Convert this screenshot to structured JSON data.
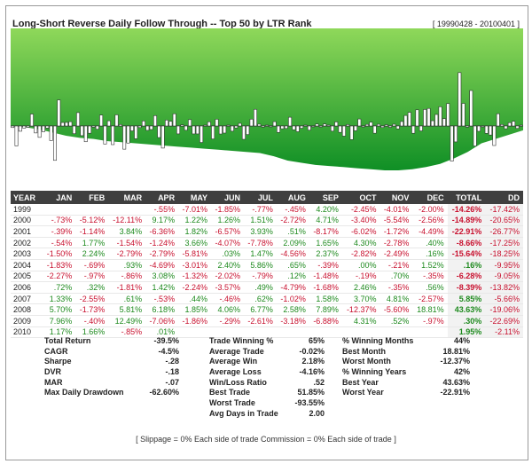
{
  "header": {
    "title": "Long-Short Reverse Daily Follow Through -- Top 50 by LTR Rank",
    "date_range": "[ 19990428 - 20100401 ]"
  },
  "chart_data": {
    "type": "area",
    "title": "Long-Short Reverse Daily Follow Through -- Top 50 by LTR Rank",
    "x_range": [
      "1999-04",
      "2010-04"
    ],
    "colors": {
      "equity_top": "#8fd85a",
      "equity_bottom": "#0f8f25",
      "drawdown": "#ffffff",
      "bar_fill": "#ffffff",
      "bar_stroke": "#333333",
      "baseline": "#333333"
    },
    "equity_series": [
      0,
      10,
      20,
      30,
      50,
      70,
      85,
      90,
      95,
      110,
      120,
      130,
      135,
      150,
      165,
      180,
      200,
      215,
      215,
      210,
      200,
      185,
      170,
      160,
      150,
      140,
      130,
      115,
      105,
      95,
      85,
      65,
      40,
      10,
      40,
      60,
      80,
      100
    ],
    "drawdown_series": [
      0,
      -5,
      -15,
      -30,
      -45,
      -55,
      -60,
      -70,
      -75,
      -80,
      -85,
      -90,
      -95,
      -100,
      -105,
      -110,
      -115,
      -120,
      -125,
      -140,
      -160,
      -170,
      -180,
      -185,
      -190,
      -195,
      -200,
      -205,
      -205,
      -200,
      -190,
      -175,
      -150,
      -120,
      -80,
      -60,
      -40,
      -20
    ],
    "monthly_returns_pct": [
      [
        -0.55,
        -7.01,
        -1.85,
        -0.77,
        -0.45,
        4.2,
        -2.45,
        -4.01,
        -2.0
      ],
      [
        -0.73,
        -5.12,
        -12.11,
        9.17,
        1.22,
        1.26,
        1.51,
        -2.72,
        4.71,
        -3.4,
        -5.54,
        -2.56
      ],
      [
        -0.39,
        -1.14,
        3.84,
        -6.36,
        1.82,
        -6.57,
        3.93,
        0.51,
        -8.17,
        -6.02,
        -1.72,
        -4.49
      ],
      [
        -0.54,
        1.77,
        -1.54,
        -1.24,
        3.66,
        -4.07,
        -7.78,
        2.09,
        1.65,
        4.3,
        -2.78,
        0.4
      ],
      [
        -1.5,
        2.24,
        -2.79,
        -2.79,
        -5.81,
        0.03,
        1.47,
        -4.56,
        2.37,
        -2.82,
        -2.49,
        0.16
      ],
      [
        -1.83,
        -0.69,
        0.93,
        -4.69,
        -3.01,
        2.4,
        5.86,
        0.65,
        -0.39,
        0.0,
        -0.21,
        1.52
      ],
      [
        -2.27,
        -0.97,
        -0.86,
        3.08,
        -1.32,
        -2.02,
        -0.79,
        0.12,
        -1.48,
        -0.19,
        0.7,
        -0.35
      ],
      [
        0.72,
        0.32,
        -1.81,
        1.42,
        -2.24,
        -3.57,
        0.49,
        -4.79,
        -1.68,
        2.46,
        -0.35,
        0.56
      ],
      [
        1.33,
        -2.55,
        0.61,
        -0.53,
        0.44,
        -0.46,
        0.62,
        -1.02,
        1.58,
        3.7,
        4.81,
        -2.57
      ],
      [
        5.7,
        -1.73,
        5.81,
        6.18,
        1.85,
        4.06,
        6.77,
        2.58,
        7.89,
        -12.37,
        -5.6,
        18.81
      ],
      [
        7.96,
        -0.4,
        12.49,
        -7.06,
        -1.86,
        -0.29,
        -2.61,
        -3.18,
        -6.88,
        4.31,
        0.52,
        -0.97
      ],
      [
        1.17,
        1.66,
        -0.85,
        0.01
      ]
    ]
  },
  "table": {
    "columns": [
      "YEAR",
      "JAN",
      "FEB",
      "MAR",
      "APR",
      "MAY",
      "JUN",
      "JUL",
      "AUG",
      "SEP",
      "OCT",
      "NOV",
      "DEC",
      "TOTAL",
      "DD"
    ],
    "rows": [
      [
        "1999",
        "",
        "",
        "",
        "-.55%",
        "-7.01%",
        "-1.85%",
        "-.77%",
        "-.45%",
        "4.20%",
        "-2.45%",
        "-4.01%",
        "-2.00%",
        "-14.26%",
        "-17.42%"
      ],
      [
        "2000",
        "-.73%",
        "-5.12%",
        "-12.11%",
        "9.17%",
        "1.22%",
        "1.26%",
        "1.51%",
        "-2.72%",
        "4.71%",
        "-3.40%",
        "-5.54%",
        "-2.56%",
        "-14.89%",
        "-20.65%"
      ],
      [
        "2001",
        "-.39%",
        "-1.14%",
        "3.84%",
        "-6.36%",
        "1.82%",
        "-6.57%",
        "3.93%",
        ".51%",
        "-8.17%",
        "-6.02%",
        "-1.72%",
        "-4.49%",
        "-22.91%",
        "-26.77%"
      ],
      [
        "2002",
        "-.54%",
        "1.77%",
        "-1.54%",
        "-1.24%",
        "3.66%",
        "-4.07%",
        "-7.78%",
        "2.09%",
        "1.65%",
        "4.30%",
        "-2.78%",
        ".40%",
        "-8.66%",
        "-17.25%"
      ],
      [
        "2003",
        "-1.50%",
        "2.24%",
        "-2.79%",
        "-2.79%",
        "-5.81%",
        ".03%",
        "1.47%",
        "-4.56%",
        "2.37%",
        "-2.82%",
        "-2.49%",
        ".16%",
        "-15.64%",
        "-18.25%"
      ],
      [
        "2004",
        "-1.83%",
        "-.69%",
        ".93%",
        "-4.69%",
        "-3.01%",
        "2.40%",
        "5.86%",
        ".65%",
        "-.39%",
        ".00%",
        "-.21%",
        "1.52%",
        ".16%",
        "-9.95%"
      ],
      [
        "2005",
        "-2.27%",
        "-.97%",
        "-.86%",
        "3.08%",
        "-1.32%",
        "-2.02%",
        "-.79%",
        ".12%",
        "-1.48%",
        "-.19%",
        ".70%",
        "-.35%",
        "-6.28%",
        "-9.05%"
      ],
      [
        "2006",
        ".72%",
        ".32%",
        "-1.81%",
        "1.42%",
        "-2.24%",
        "-3.57%",
        ".49%",
        "-4.79%",
        "-1.68%",
        "2.46%",
        "-.35%",
        ".56%",
        "-8.39%",
        "-13.82%"
      ],
      [
        "2007",
        "1.33%",
        "-2.55%",
        ".61%",
        "-.53%",
        ".44%",
        "-.46%",
        ".62%",
        "-1.02%",
        "1.58%",
        "3.70%",
        "4.81%",
        "-2.57%",
        "5.85%",
        "-5.66%"
      ],
      [
        "2008",
        "5.70%",
        "-1.73%",
        "5.81%",
        "6.18%",
        "1.85%",
        "4.06%",
        "6.77%",
        "2.58%",
        "7.89%",
        "-12.37%",
        "-5.60%",
        "18.81%",
        "43.63%",
        "-19.06%"
      ],
      [
        "2009",
        "7.96%",
        "-.40%",
        "12.49%",
        "-7.06%",
        "-1.86%",
        "-.29%",
        "-2.61%",
        "-3.18%",
        "-6.88%",
        "4.31%",
        ".52%",
        "-.97%",
        ".30%",
        "-22.69%"
      ],
      [
        "2010",
        "1.17%",
        "1.66%",
        "-.85%",
        ".01%",
        "",
        "",
        "",
        "",
        "",
        "",
        "",
        "",
        "1.95%",
        "-2.11%"
      ]
    ]
  },
  "stats": {
    "col1": [
      {
        "label": "Total Return",
        "value": "-39.5%"
      },
      {
        "label": "CAGR",
        "value": "-4.5%"
      },
      {
        "label": "Sharpe",
        "value": "-.28"
      },
      {
        "label": "DVR",
        "value": "-.18"
      },
      {
        "label": "MAR",
        "value": "-.07"
      },
      {
        "label": "Max Daily Drawdown",
        "value": "-62.60%"
      }
    ],
    "col2": [
      {
        "label": "Trade Winning %",
        "value": "65%"
      },
      {
        "label": "Average Trade",
        "value": "-0.02%"
      },
      {
        "label": "Average Win",
        "value": "2.18%"
      },
      {
        "label": "Average Loss",
        "value": "-4.16%"
      },
      {
        "label": "Win/Loss Ratio",
        "value": ".52"
      },
      {
        "label": "Best Trade",
        "value": "51.85%"
      },
      {
        "label": "Worst Trade",
        "value": "-93.55%"
      },
      {
        "label": "Avg Days in Trade",
        "value": "2.00"
      }
    ],
    "col3": [
      {
        "label": "% Winning Months",
        "value": "44%"
      },
      {
        "label": "Best Month",
        "value": "18.81%"
      },
      {
        "label": "Worst Month",
        "value": "-12.37%"
      },
      {
        "label": "% Winning Years",
        "value": "42%"
      },
      {
        "label": "Best Year",
        "value": "43.63%"
      },
      {
        "label": "Worst Year",
        "value": "-22.91%"
      }
    ]
  },
  "footnote": "[ Slippage = 0% Each side of trade     Commission = 0% Each side of trade ]"
}
